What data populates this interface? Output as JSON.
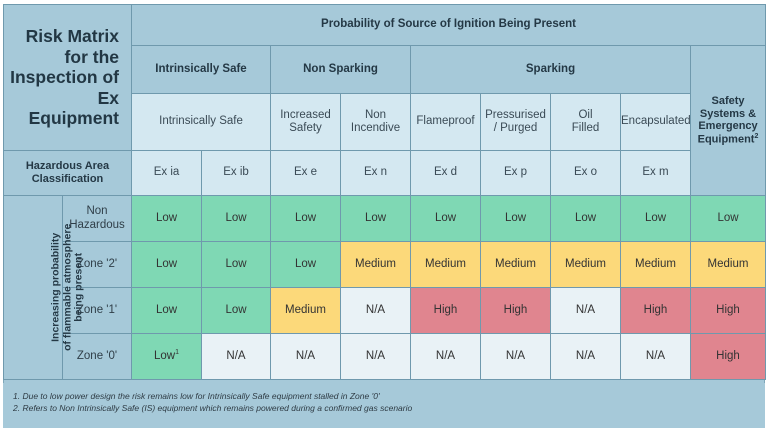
{
  "title": "Risk Matrix for the Inspection of Ex Equipment",
  "title_lines": [
    "Risk Matrix",
    "for the",
    "Inspection of",
    "Ex Equipment"
  ],
  "probability_header": "Probability of Source of Ignition Being Present",
  "groups": {
    "intrinsically_safe": "Intrinsically Safe",
    "non_sparking": "Non Sparking",
    "sparking": "Sparking",
    "safety_systems": [
      "Safety",
      "Systems &",
      "Emergency",
      "Equipment"
    ],
    "safety_systems_sup": "2"
  },
  "subgroups": {
    "intrinsically_safe": "Intrinsically Safe",
    "increased_safety": [
      "Increased",
      "Safety"
    ],
    "non_incendive": [
      "Non",
      "Incendive"
    ],
    "flameproof": "Flameproof",
    "pressurised": [
      "Pressurised",
      "/ Purged"
    ],
    "oil_filled": [
      "Oil",
      "Filled"
    ],
    "encapsulated": "Encapsulated"
  },
  "hazardous_area_label": [
    "Hazardous Area",
    "Classification"
  ],
  "codes": [
    "Ex ia",
    "Ex ib",
    "Ex e",
    "Ex n",
    "Ex d",
    "Ex p",
    "Ex o",
    "Ex m"
  ],
  "side_label": [
    "Increasing probability",
    "of flammable atmosphere",
    "being present"
  ],
  "rows": [
    {
      "zone": [
        "Non",
        "Hazardous"
      ],
      "cells": [
        "Low",
        "Low",
        "Low",
        "Low",
        "Low",
        "Low",
        "Low",
        "Low",
        "Low"
      ]
    },
    {
      "zone": [
        "Zone '2'"
      ],
      "cells": [
        "Low",
        "Low",
        "Low",
        "Medium",
        "Medium",
        "Medium",
        "Medium",
        "Medium",
        "Medium"
      ]
    },
    {
      "zone": [
        "Zone '1'"
      ],
      "cells": [
        "Low",
        "Low",
        "Medium",
        "N/A",
        "High",
        "High",
        "N/A",
        "High",
        "High"
      ]
    },
    {
      "zone": [
        "Zone '0'"
      ],
      "cells": [
        "Low",
        "N/A",
        "N/A",
        "N/A",
        "N/A",
        "N/A",
        "N/A",
        "N/A",
        "High"
      ],
      "first_sup": "1"
    }
  ],
  "risk_colors": {
    "Low": "#7fd8b4",
    "Medium": "#fcd97a",
    "High": "#e0858f",
    "N/A": "#e9f2f6"
  },
  "notes": [
    "1.  Due to low power design the risk remains low for Intrinsically Safe equipment stalled in Zone '0'",
    "2.  Refers to Non Intrinsically Safe (IS) equipment which remains powered during a confirmed gas scenario"
  ]
}
